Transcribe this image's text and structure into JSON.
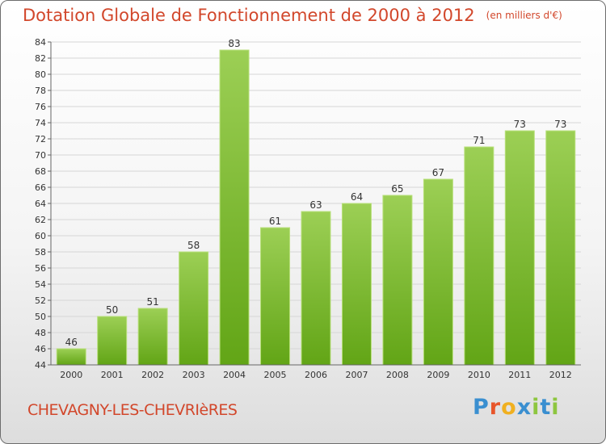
{
  "title": "Dotation Globale de Fonctionnement de 2000 à 2012",
  "title_unit": "(en milliers d'€)",
  "commune": "CHEVAGNY-LES-CHEVRIèRES",
  "logo": {
    "text": "Proxiti",
    "letter_colors": [
      "#3a8fd0",
      "#e8552a",
      "#f0b020",
      "#3a8fd0",
      "#8dc63f",
      "#3a8fd0",
      "#8dc63f"
    ]
  },
  "colors": {
    "bar_top": "#9ccf55",
    "bar_bottom": "#62a516",
    "accent": "#d2472b"
  },
  "chart_data": {
    "type": "bar",
    "categories": [
      "2000",
      "2001",
      "2002",
      "2003",
      "2004",
      "2005",
      "2006",
      "2007",
      "2008",
      "2009",
      "2010",
      "2011",
      "2012"
    ],
    "values": [
      46,
      50,
      51,
      58,
      83,
      61,
      63,
      64,
      65,
      67,
      71,
      73,
      73
    ],
    "data_labels": [
      "46",
      "50",
      "51",
      "58",
      "83",
      "61",
      "63",
      "64",
      "65",
      "67",
      "71",
      "73",
      "73"
    ],
    "y_ticks": [
      "44",
      "46",
      "48",
      "50",
      "52",
      "54",
      "56",
      "58",
      "60",
      "62",
      "64",
      "66",
      "68",
      "70",
      "72",
      "74",
      "76",
      "78",
      "80",
      "82",
      "84"
    ],
    "ylim": [
      44,
      84
    ],
    "grid": true,
    "legend": "none"
  }
}
